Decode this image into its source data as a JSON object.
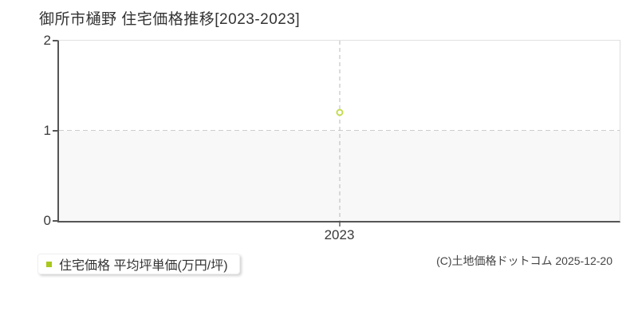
{
  "chart_data": {
    "type": "scatter",
    "title": "御所市樋野 住宅価格推移[2023-2023]",
    "x": [
      "2023"
    ],
    "series": [
      {
        "name": "住宅価格 平均坪単価(万円/坪)",
        "values": [
          1.2
        ]
      }
    ],
    "xlabel": "",
    "ylabel": "",
    "ylim": [
      0,
      2
    ],
    "yticks": [
      0,
      1,
      2
    ],
    "gridlines_y": [
      1
    ],
    "grid_on": true,
    "legend_position": "bottom-left",
    "point_color": "#c6dc52",
    "band_fill": "#f8f8f8",
    "axis_color": "#555555",
    "gridline_color": "#cdcdcd"
  },
  "legend": {
    "label": "住宅価格 平均坪単価(万円/坪)",
    "marker_color": "#a9c81d"
  },
  "footer": {
    "copyright": "(C)土地価格ドットコム 2025-12-20"
  }
}
